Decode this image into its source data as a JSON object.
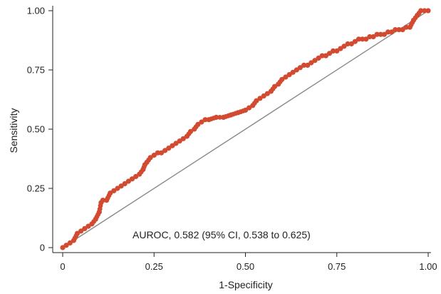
{
  "chart_data": {
    "type": "line",
    "title": "",
    "xlabel": "1-Specificity",
    "ylabel": "Sensitivity",
    "xlim": [
      0,
      1
    ],
    "ylim": [
      0,
      1
    ],
    "x_ticks": [
      {
        "value": 0,
        "label": "0"
      },
      {
        "value": 0.25,
        "label": "0.25"
      },
      {
        "value": 0.5,
        "label": "0.50"
      },
      {
        "value": 0.75,
        "label": "0.75"
      },
      {
        "value": 1,
        "label": "1.00"
      }
    ],
    "y_ticks": [
      {
        "value": 0,
        "label": "0"
      },
      {
        "value": 0.25,
        "label": "0.25"
      },
      {
        "value": 0.5,
        "label": "0.50"
      },
      {
        "value": 0.75,
        "label": "0.75"
      },
      {
        "value": 1,
        "label": "1.00"
      }
    ],
    "grid": false,
    "annotation": "AUROC, 0.582 (95% CI, 0.538 to 0.625)",
    "reference_line": {
      "x": [
        0,
        1
      ],
      "y": [
        0,
        1
      ],
      "color": "#8a8a8a"
    },
    "series": [
      {
        "color": "#d24a30",
        "x": [
          0.0,
          0.01,
          0.02,
          0.03,
          0.04,
          0.05,
          0.06,
          0.07,
          0.08,
          0.09,
          0.1,
          0.105,
          0.11,
          0.12,
          0.13,
          0.14,
          0.15,
          0.16,
          0.17,
          0.18,
          0.19,
          0.2,
          0.21,
          0.22,
          0.225,
          0.23,
          0.24,
          0.25,
          0.26,
          0.27,
          0.28,
          0.29,
          0.3,
          0.31,
          0.32,
          0.33,
          0.34,
          0.35,
          0.36,
          0.37,
          0.38,
          0.39,
          0.4,
          0.42,
          0.44,
          0.46,
          0.48,
          0.5,
          0.51,
          0.52,
          0.53,
          0.54,
          0.55,
          0.56,
          0.57,
          0.58,
          0.59,
          0.6,
          0.61,
          0.62,
          0.63,
          0.64,
          0.65,
          0.66,
          0.67,
          0.68,
          0.69,
          0.7,
          0.71,
          0.72,
          0.73,
          0.74,
          0.75,
          0.76,
          0.77,
          0.78,
          0.79,
          0.8,
          0.81,
          0.82,
          0.83,
          0.84,
          0.85,
          0.86,
          0.87,
          0.88,
          0.89,
          0.9,
          0.91,
          0.92,
          0.93,
          0.94,
          0.95,
          0.96,
          0.97,
          0.98,
          0.99,
          1.0
        ],
        "y": [
          0.0,
          0.01,
          0.02,
          0.03,
          0.06,
          0.07,
          0.08,
          0.09,
          0.1,
          0.12,
          0.15,
          0.19,
          0.2,
          0.2,
          0.23,
          0.24,
          0.25,
          0.26,
          0.27,
          0.28,
          0.29,
          0.3,
          0.31,
          0.33,
          0.35,
          0.36,
          0.38,
          0.39,
          0.4,
          0.4,
          0.41,
          0.42,
          0.43,
          0.44,
          0.45,
          0.46,
          0.47,
          0.49,
          0.5,
          0.52,
          0.53,
          0.54,
          0.54,
          0.55,
          0.55,
          0.56,
          0.57,
          0.58,
          0.59,
          0.6,
          0.62,
          0.63,
          0.64,
          0.65,
          0.66,
          0.68,
          0.69,
          0.71,
          0.72,
          0.73,
          0.74,
          0.75,
          0.76,
          0.77,
          0.77,
          0.78,
          0.79,
          0.8,
          0.81,
          0.81,
          0.82,
          0.83,
          0.83,
          0.84,
          0.85,
          0.86,
          0.86,
          0.87,
          0.88,
          0.88,
          0.88,
          0.89,
          0.89,
          0.9,
          0.9,
          0.9,
          0.91,
          0.91,
          0.92,
          0.92,
          0.92,
          0.93,
          0.93,
          0.96,
          0.98,
          1.0,
          1.0,
          1.0
        ]
      }
    ]
  }
}
